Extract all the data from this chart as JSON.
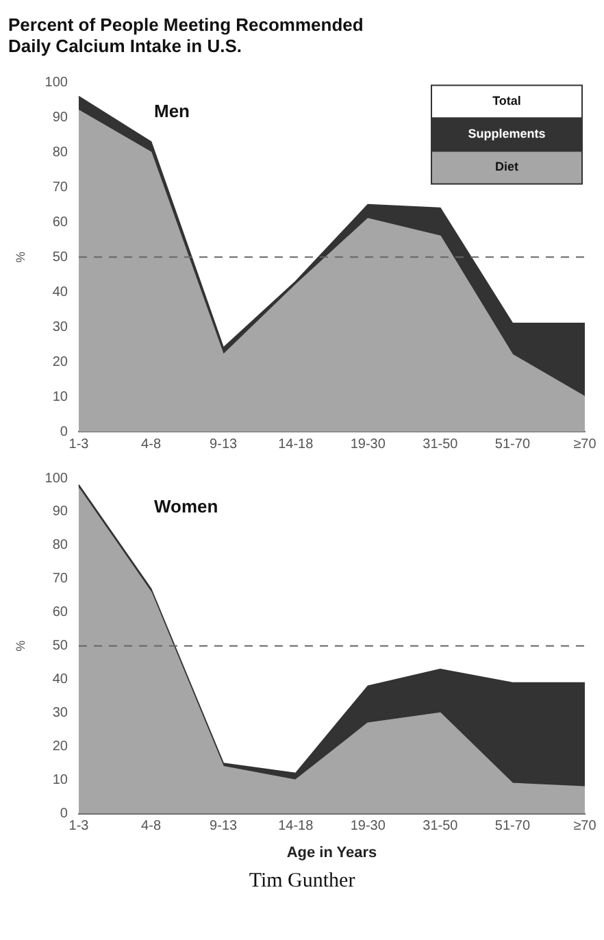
{
  "chart_data": [
    {
      "type": "area",
      "title": "Percent of People Meeting Recommended Daily Calcium Intake in U.S.",
      "ylabel": "%",
      "annotations": [
        "Men"
      ],
      "categories": [
        "1-3",
        "4-8",
        "9-13",
        "14-18",
        "19-30",
        "31-50",
        "51-70",
        "≥70"
      ],
      "stacked": true,
      "series": [
        {
          "name": "Diet",
          "color": "#a6a6a6",
          "values": [
            92,
            80,
            22,
            42,
            61,
            56,
            22,
            10
          ]
        },
        {
          "name": "Supplements",
          "color": "#333333",
          "values": [
            4,
            3,
            2,
            1,
            4,
            8,
            9,
            21
          ]
        }
      ],
      "legend_title": "Total",
      "ylim": [
        0,
        100
      ],
      "yticks": [
        0,
        10,
        20,
        30,
        40,
        50,
        60,
        70,
        80,
        90,
        100
      ],
      "grid": false,
      "legend": "top right",
      "ref_lines": [
        {
          "axis": "y",
          "value": 50,
          "line_style": "dashed",
          "color": "#666666"
        }
      ]
    },
    {
      "type": "area",
      "xlabel": "Age in Years",
      "ylabel": "%",
      "annotations": [
        "Women",
        "Tim Gunther"
      ],
      "categories": [
        "1-3",
        "4-8",
        "9-13",
        "14-18",
        "19-30",
        "31-50",
        "51-70",
        "≥70"
      ],
      "stacked": true,
      "series": [
        {
          "color": "#a6a6a6",
          "values": [
            97,
            66,
            14,
            10,
            27,
            30,
            9,
            8
          ]
        },
        {
          "color": "#333333",
          "values": [
            1,
            1,
            1,
            2,
            11,
            13,
            30,
            31
          ]
        }
      ],
      "ylim": [
        0,
        100
      ],
      "yticks": [
        0,
        10,
        20,
        30,
        40,
        50,
        60,
        70,
        80,
        90,
        100
      ],
      "grid": false,
      "legend": false,
      "ref_lines": [
        {
          "axis": "y",
          "value": 50,
          "line_style": "dashed",
          "color": "#666666"
        }
      ]
    }
  ]
}
